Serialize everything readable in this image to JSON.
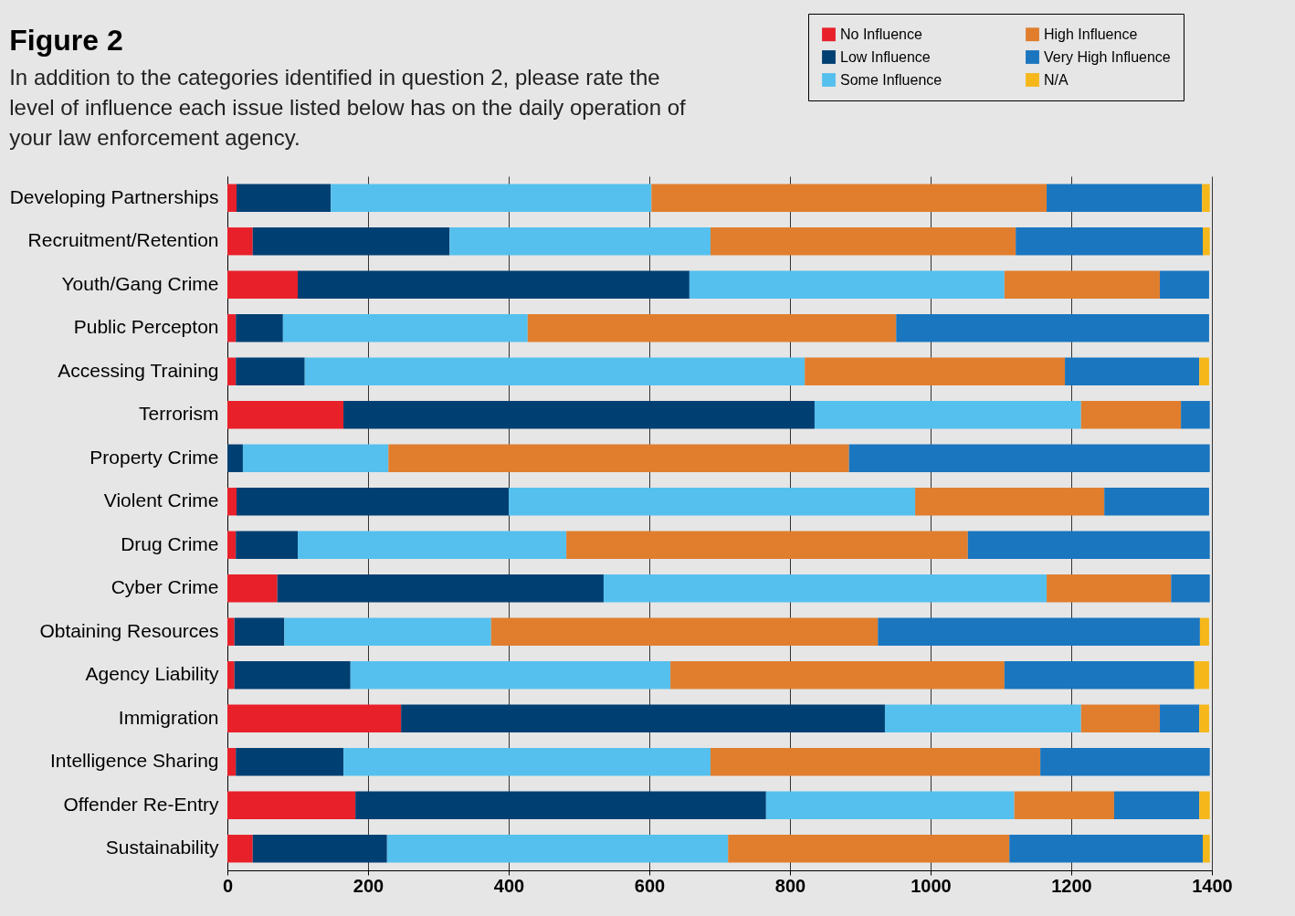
{
  "chart_data": {
    "type": "bar",
    "orientation": "horizontal",
    "stacked": true,
    "title": "Figure 2",
    "subtitle": "In addition to the categories identified in question 2, please rate the level of influence each issue listed below has on the daily operation of your law enforcement agency.",
    "categories": [
      "Developing Partnerships",
      "Recruitment/Retention",
      "Youth/Gang Crime",
      "Public Percepton",
      "Accessing Training",
      "Terrorism",
      "Property Crime",
      "Violent Crime",
      "Drug Crime",
      "Cyber Crime",
      "Obtaining Resources",
      "Agency Liability",
      "Immigration",
      "Intelligence Sharing",
      "Offender Re-Entry",
      "Sustainability"
    ],
    "series": [
      {
        "name": "No Influence",
        "color": "#e8202a",
        "values": [
          13,
          36,
          100,
          12,
          12,
          165,
          0,
          13,
          12,
          71,
          10,
          10,
          247,
          12,
          182,
          36
        ]
      },
      {
        "name": "Low Influence",
        "color": "#003f72",
        "values": [
          134,
          280,
          557,
          67,
          98,
          670,
          22,
          387,
          88,
          464,
          71,
          165,
          688,
          153,
          584,
          191
        ]
      },
      {
        "name": "Some Influence",
        "color": "#55c0ee",
        "values": [
          456,
          371,
          448,
          348,
          711,
          379,
          207,
          578,
          382,
          630,
          294,
          455,
          279,
          522,
          353,
          485
        ]
      },
      {
        "name": "High Influence",
        "color": "#e07e2e",
        "values": [
          562,
          434,
          221,
          524,
          370,
          142,
          655,
          269,
          571,
          177,
          550,
          475,
          112,
          469,
          142,
          400
        ]
      },
      {
        "name": "Very High Influence",
        "color": "#1a76bf",
        "values": [
          221,
          266,
          70,
          445,
          191,
          41,
          513,
          149,
          344,
          55,
          458,
          270,
          56,
          241,
          121,
          275
        ]
      },
      {
        "name": "N/A",
        "color": "#f5b71a",
        "values": [
          11,
          10,
          null,
          null,
          14,
          null,
          null,
          null,
          null,
          null,
          13,
          21,
          14,
          null,
          15,
          10
        ]
      }
    ],
    "xlim": [
      0,
      1400
    ],
    "xticks": [
      0,
      200,
      400,
      600,
      800,
      1000,
      1200,
      1400
    ],
    "grid": "x",
    "legend": "top right"
  }
}
